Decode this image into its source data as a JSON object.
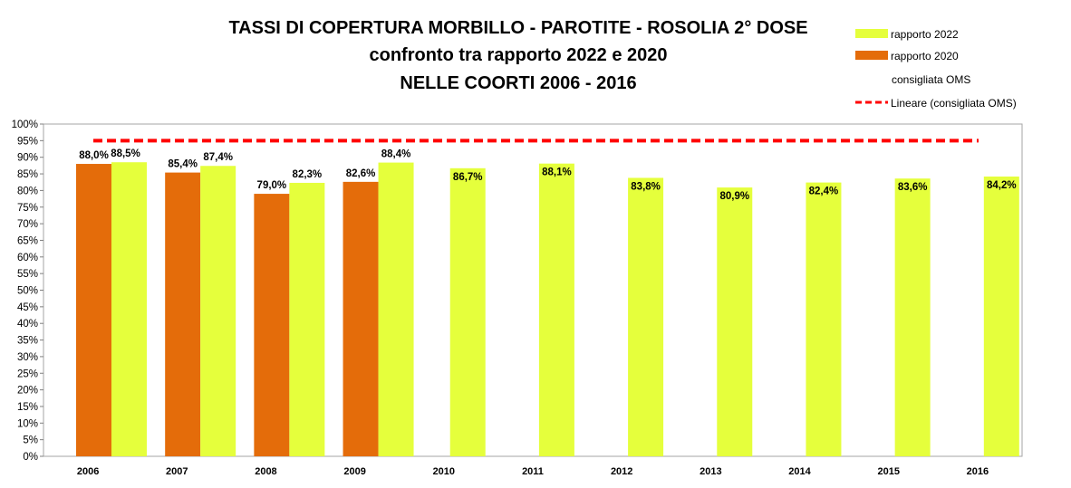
{
  "chart_data": {
    "type": "bar",
    "title_lines": [
      "TASSI DI COPERTURA MORBILLO - PAROTITE - ROSOLIA 2° DOSE",
      "confronto tra rapporto 2022 e 2020",
      "NELLE COORTI 2006 - 2016"
    ],
    "categories": [
      "2006",
      "2007",
      "2008",
      "2009",
      "2010",
      "2011",
      "2012",
      "2013",
      "2014",
      "2015",
      "2016"
    ],
    "ylim": [
      0,
      100
    ],
    "yticks": [
      "0%",
      "5%",
      "10%",
      "15%",
      "20%",
      "25%",
      "30%",
      "35%",
      "40%",
      "45%",
      "50%",
      "55%",
      "60%",
      "65%",
      "70%",
      "75%",
      "80%",
      "85%",
      "90%",
      "95%",
      "100%"
    ],
    "series": [
      {
        "name": "rapporto 2020",
        "color": "#e46c0a",
        "values": [
          88.0,
          85.4,
          79.0,
          82.6,
          null,
          null,
          null,
          null,
          null,
          null,
          null
        ],
        "labels": [
          "88,0%",
          "85,4%",
          "79,0%",
          "82,6%",
          "",
          "",
          "",
          "",
          "",
          "",
          ""
        ]
      },
      {
        "name": "rapporto 2022",
        "color": "#e5ff3c",
        "values": [
          88.5,
          87.4,
          82.3,
          88.4,
          86.7,
          88.1,
          83.8,
          80.9,
          82.4,
          83.6,
          84.2
        ],
        "labels": [
          "88,5%",
          "87,4%",
          "82,3%",
          "88,4%",
          "86,7%",
          "88,1%",
          "83,8%",
          "80,9%",
          "82,4%",
          "83,6%",
          "84,2%"
        ]
      },
      {
        "name": "consigliata OMS",
        "value": 95
      }
    ],
    "legend": [
      {
        "label": "rapporto 2022",
        "kind": "bar",
        "color": "#e5ff3c"
      },
      {
        "label": "rapporto 2020",
        "kind": "bar",
        "color": "#e46c0a"
      },
      {
        "label": "consigliata OMS",
        "kind": "none",
        "color": ""
      },
      {
        "label": "Lineare (consigliata OMS)",
        "kind": "dashed-line",
        "color": "#ff0000"
      }
    ],
    "legend_position": "top-right",
    "grid": false
  }
}
